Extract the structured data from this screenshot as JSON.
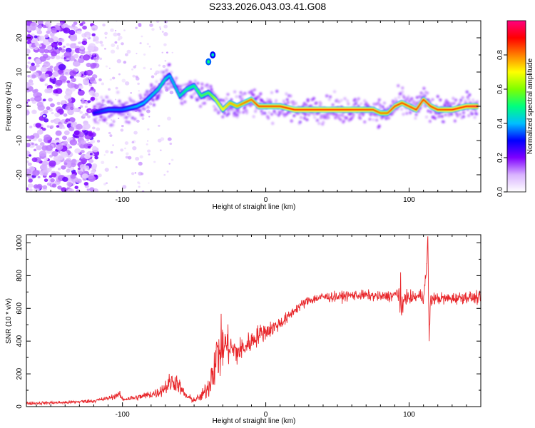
{
  "title": "S233.2026.043.03.41.G08",
  "chart_data": [
    {
      "type": "heatmap",
      "xlabel": "Height of straight line (km)",
      "ylabel": "Frequency (Hz)",
      "xlim": [
        -167,
        150
      ],
      "ylim": [
        -25,
        25
      ],
      "xticks": [
        -100,
        0,
        100
      ],
      "yticks": [
        -20,
        -10,
        0,
        10,
        20
      ],
      "colorbar": {
        "label": "Normalized spectral amplitude",
        "range": [
          0,
          1
        ],
        "ticks": [
          0.0,
          0.2,
          0.4,
          0.6,
          0.8
        ],
        "colors": [
          "#ffffff",
          "#d9b3ff",
          "#7f00ff",
          "#0000ff",
          "#00bfff",
          "#00ff7f",
          "#7fff00",
          "#ffff00",
          "#ff7f00",
          "#ff0000",
          "#ff0080"
        ]
      },
      "ridge": {
        "x": [
          -120,
          -110,
          -100,
          -90,
          -85,
          -80,
          -75,
          -70,
          -67,
          -60,
          -55,
          -50,
          -45,
          -40,
          -35,
          -30,
          -25,
          -20,
          -15,
          -10,
          -5,
          0,
          10,
          20,
          40,
          60,
          75,
          80,
          85,
          90,
          95,
          100,
          105,
          110,
          115,
          120,
          130,
          140,
          148
        ],
        "y": [
          -2,
          -1,
          -1,
          0,
          1,
          3,
          5,
          8,
          9,
          3,
          5,
          6,
          3,
          4,
          2,
          -1,
          1,
          0,
          1,
          2,
          0,
          0,
          0,
          -1,
          -1,
          -1,
          -1,
          -2,
          -2,
          0,
          1,
          0,
          -1,
          2,
          0,
          -1,
          -1,
          0,
          0
        ],
        "amplitude": [
          0.3,
          0.35,
          0.35,
          0.4,
          0.4,
          0.4,
          0.45,
          0.45,
          0.4,
          0.45,
          0.5,
          0.5,
          0.55,
          0.55,
          0.65,
          0.7,
          0.75,
          0.75,
          0.8,
          0.8,
          0.85,
          0.85,
          0.85,
          0.9,
          0.9,
          0.9,
          0.85,
          0.8,
          0.8,
          0.85,
          0.85,
          0.85,
          0.85,
          0.85,
          0.85,
          0.85,
          0.9,
          0.9,
          0.95
        ]
      },
      "isolated_blobs": [
        {
          "x": -40,
          "y": 13,
          "amplitude": 0.35
        },
        {
          "x": -37,
          "y": 15,
          "amplitude": 0.3
        }
      ],
      "noise_region_x": [
        -167,
        -118
      ],
      "noise_fringe_x": [
        -118,
        -65
      ]
    },
    {
      "type": "line",
      "xlabel": "Height of straight line (km)",
      "ylabel": "SNR (10 * v/v)",
      "xlim": [
        -167,
        150
      ],
      "ylim": [
        0,
        1050
      ],
      "xticks": [
        -100,
        0,
        100
      ],
      "yticks": [
        0,
        200,
        400,
        600,
        800,
        1000
      ],
      "color": "#e8262a",
      "series": [
        {
          "name": "SNR",
          "x": [
            -167,
            -140,
            -120,
            -110,
            -102,
            -100,
            -90,
            -75,
            -70,
            -66,
            -62,
            -58,
            -55,
            -50,
            -45,
            -40,
            -36,
            -33,
            -30,
            -28,
            -25,
            -22,
            -20,
            -15,
            -10,
            -5,
            0,
            5,
            10,
            15,
            20,
            25,
            30,
            40,
            50,
            60,
            70,
            80,
            90,
            93,
            95,
            97,
            100,
            105,
            110,
            112,
            113,
            114,
            115,
            117,
            120,
            130,
            140,
            150
          ],
          "y": [
            20,
            25,
            35,
            50,
            75,
            45,
            55,
            85,
            120,
            150,
            150,
            90,
            60,
            40,
            60,
            120,
            260,
            330,
            360,
            380,
            360,
            340,
            330,
            360,
            400,
            440,
            460,
            480,
            510,
            540,
            590,
            620,
            650,
            670,
            670,
            680,
            680,
            670,
            680,
            700,
            560,
            680,
            660,
            670,
            680,
            800,
            1040,
            420,
            650,
            660,
            660,
            660,
            670,
            660
          ],
          "noise": [
            8,
            8,
            10,
            12,
            15,
            12,
            15,
            25,
            40,
            55,
            45,
            30,
            20,
            15,
            25,
            60,
            120,
            150,
            130,
            100,
            90,
            80,
            70,
            60,
            55,
            50,
            45,
            40,
            35,
            30,
            25,
            25,
            25,
            25,
            25,
            25,
            25,
            25,
            30,
            60,
            60,
            40,
            30,
            30,
            40,
            60,
            40,
            40,
            40,
            30,
            30,
            30,
            30,
            30
          ]
        }
      ],
      "notable_features": [
        {
          "x": 94,
          "y": 420,
          "type": "min"
        },
        {
          "x": 94,
          "y": 820,
          "type": "max"
        },
        {
          "x": 113,
          "y": 1040,
          "type": "max"
        },
        {
          "x": 114,
          "y": 400,
          "type": "min"
        }
      ]
    }
  ]
}
